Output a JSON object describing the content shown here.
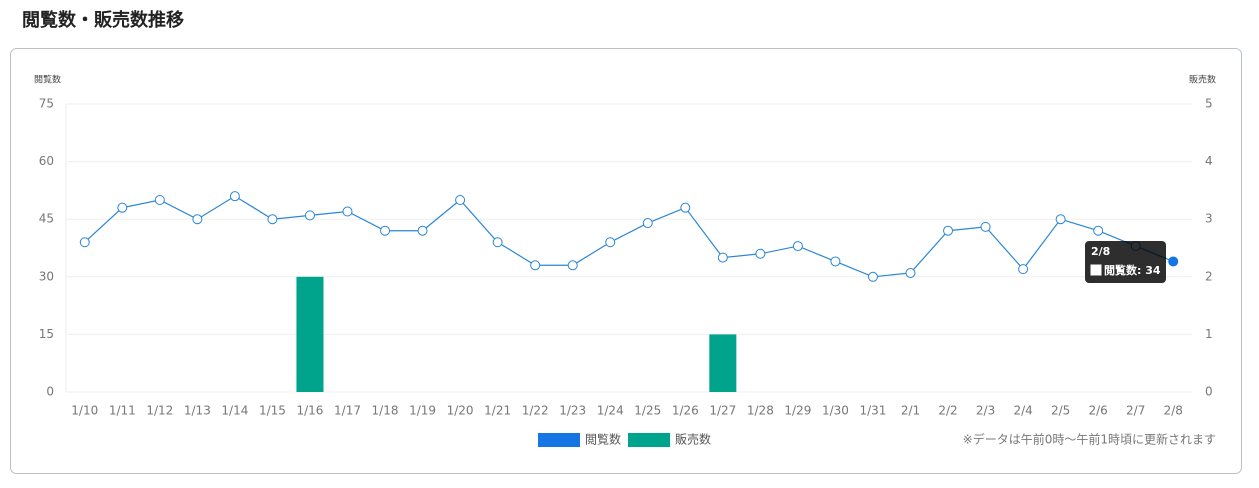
{
  "title": "閲覧数・販売数推移",
  "chart_data": {
    "type": "combo",
    "y_label": "閲覧数",
    "y2_label": "販売数",
    "categories": [
      "1/10",
      "1/11",
      "1/12",
      "1/13",
      "1/14",
      "1/15",
      "1/16",
      "1/17",
      "1/18",
      "1/19",
      "1/20",
      "1/21",
      "1/22",
      "1/23",
      "1/24",
      "1/25",
      "1/26",
      "1/27",
      "1/28",
      "1/29",
      "1/30",
      "1/31",
      "2/1",
      "2/2",
      "2/3",
      "2/4",
      "2/5",
      "2/6",
      "2/7",
      "2/8"
    ],
    "series": [
      {
        "name": "閲覧数",
        "type": "line",
        "color": "#2a86d6",
        "legend_color": "#1576e3",
        "values": [
          39,
          48,
          50,
          45,
          51,
          45,
          46,
          47,
          42,
          42,
          50,
          39,
          33,
          33,
          39,
          44,
          48,
          35,
          36,
          38,
          34,
          30,
          31,
          42,
          43,
          32,
          45,
          42,
          38,
          34
        ]
      },
      {
        "name": "販売数",
        "type": "bar",
        "axis": "y2",
        "color": "#00a38b",
        "legend_color": "#00a38b",
        "values": [
          0,
          0,
          0,
          0,
          0,
          0,
          2,
          0,
          0,
          0,
          0,
          0,
          0,
          0,
          0,
          0,
          0,
          1,
          0,
          0,
          0,
          0,
          0,
          0,
          0,
          0,
          0,
          0,
          0,
          0
        ]
      }
    ],
    "ylim": [
      0,
      75
    ],
    "yticks": [
      0,
      15,
      30,
      45,
      60,
      75
    ],
    "y2lim": [
      0,
      5
    ],
    "y2ticks": [
      0,
      1,
      2,
      3,
      4,
      5
    ],
    "grid": true,
    "tooltip": {
      "title": "2/8",
      "text": "閲覧数: 34"
    },
    "note": "※データは午前0時～午前1時頃に更新されます"
  }
}
